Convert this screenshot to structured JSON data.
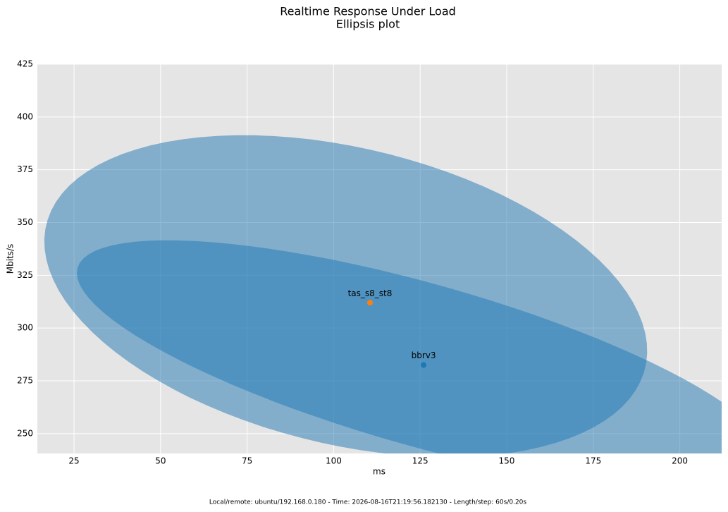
{
  "chart_data": {
    "type": "scatter",
    "title": "Realtime Response Under Load",
    "subtitle": "Ellipsis plot",
    "xlabel": "ms",
    "ylabel": "Mbits/s",
    "xlim": [
      14.4,
      212.1
    ],
    "ylim": [
      240.6,
      425
    ],
    "xticks": [
      25,
      50,
      75,
      100,
      125,
      150,
      175,
      200
    ],
    "yticks": [
      250,
      275,
      300,
      325,
      350,
      375,
      400,
      425
    ],
    "grid": true,
    "background": "#e5e5e5",
    "grid_color": "#ffffff",
    "series": [
      {
        "name": "bbrv3",
        "color": "#1f77b4",
        "x": [
          126
        ],
        "values": [
          282.5
        ],
        "ellipse": {
          "center": [
            125.9,
            282.4
          ],
          "axis_a": [
            99.9,
            -46.1
          ],
          "axis_b": [
            6.3,
            37.1
          ],
          "color": "#1f77b4",
          "opacity": 0.5
        }
      },
      {
        "name": "tas_s8_st8",
        "color": "#ff7f0e",
        "x": [
          110.5
        ],
        "values": [
          312
        ],
        "ellipse": {
          "center": [
            103.5,
            315.1
          ],
          "axis_a": [
            85.7,
            -12.7
          ],
          "axis_b": [
            -15.5,
            75.2
          ],
          "color": "#1f77b4",
          "opacity": 0.5
        }
      }
    ],
    "footer": "Local/remote: ubuntu/192.168.0.180 - Time: 2026-08-16T21:19:56.182130 - Length/step: 60s/0.20s"
  }
}
